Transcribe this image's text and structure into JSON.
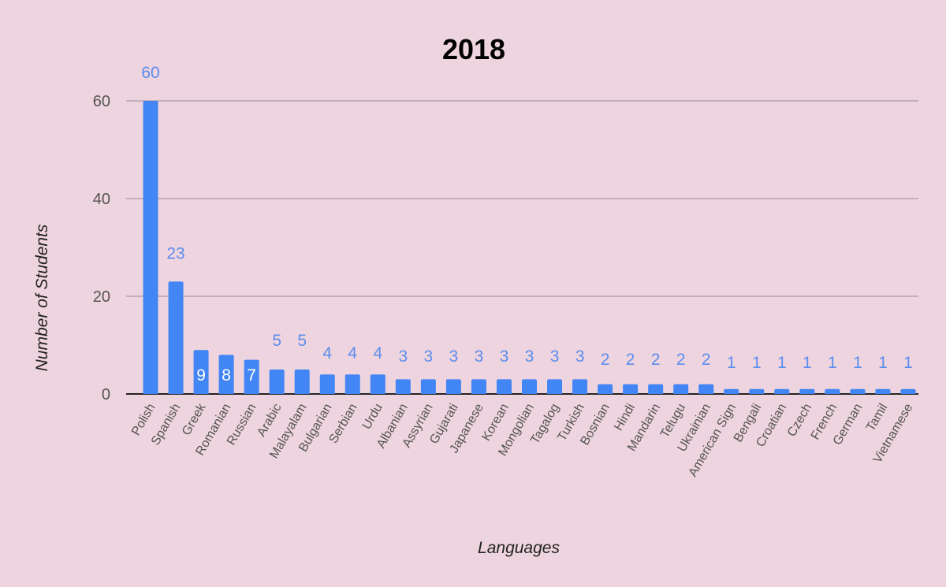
{
  "chart_data": {
    "type": "bar",
    "title": "2018",
    "xlabel": "Languages",
    "ylabel": "Number of Students",
    "ylim": [
      0,
      60
    ],
    "yticks": [
      0,
      20,
      40,
      60
    ],
    "grid": true,
    "categories": [
      "Polish",
      "Spanish",
      "Greek",
      "Romanian",
      "Russian",
      "Arabic",
      "Malayalam",
      "Bulgarian",
      "Serbian",
      "Urdu",
      "Albanian",
      "Assyrian",
      "Gujarati",
      "Japanese",
      "Korean",
      "Mongolian",
      "Tagalog",
      "Turkish",
      "Bosnian",
      "Hindi",
      "Mandarin",
      "Telugu",
      "Ukrainian",
      "American Sign",
      "Bengali",
      "Croatian",
      "Czech",
      "French",
      "German",
      "Tamil",
      "Vietnamese"
    ],
    "values": [
      60,
      23,
      9,
      8,
      7,
      5,
      5,
      4,
      4,
      4,
      3,
      3,
      3,
      3,
      3,
      3,
      3,
      3,
      2,
      2,
      2,
      2,
      2,
      1,
      1,
      1,
      1,
      1,
      1,
      1,
      1
    ],
    "labels_inside": [
      "Greek",
      "Romanian",
      "Russian"
    ],
    "colors": {
      "background": "#eed4de",
      "bar": "#4285f4",
      "label": "#5b8def",
      "label_inside": "#ffffff",
      "grid": "#b3a5ad",
      "axis": "#222222",
      "text": "#555555",
      "title": "#000000"
    }
  }
}
